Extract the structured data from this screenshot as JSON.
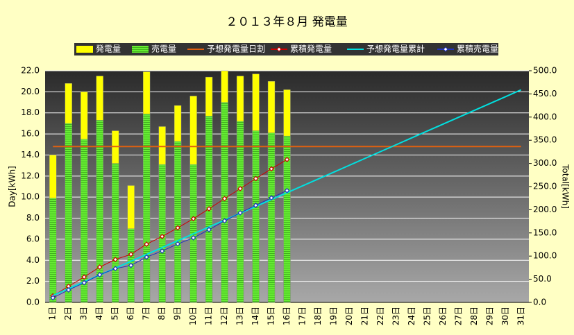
{
  "chart_data": {
    "type": "bar",
    "title": "２０１３年８月 発電量",
    "ylabel": "Day[kWh]",
    "y2label": "Total[kWh]",
    "categories": [
      "1日",
      "2日",
      "3日",
      "4日",
      "5日",
      "6日",
      "7日",
      "8日",
      "9日",
      "10日",
      "11日",
      "12日",
      "13日",
      "14日",
      "15日",
      "16日",
      "17日",
      "18日",
      "19日",
      "20日",
      "21日",
      "22日",
      "23日",
      "24日",
      "25日",
      "26日",
      "27日",
      "28日",
      "29日",
      "30日",
      "31日"
    ],
    "ylim": [
      0,
      22
    ],
    "yticks": [
      {
        "value": 0,
        "label": "0.0"
      },
      {
        "value": 2,
        "label": "2.0"
      },
      {
        "value": 4,
        "label": "4.0"
      },
      {
        "value": 6,
        "label": "6.0"
      },
      {
        "value": 8,
        "label": "8.0"
      },
      {
        "value": 10,
        "label": "10.0"
      },
      {
        "value": 12,
        "label": "12.0"
      },
      {
        "value": 14,
        "label": "14.0"
      },
      {
        "value": 16,
        "label": "16.0"
      },
      {
        "value": 18,
        "label": "18.0"
      },
      {
        "value": 20,
        "label": "20.0"
      },
      {
        "value": 22,
        "label": "22.0"
      }
    ],
    "y2lim": [
      0,
      500
    ],
    "y2ticks": [
      {
        "value": 0,
        "label": "0.0"
      },
      {
        "value": 50,
        "label": "50.0"
      },
      {
        "value": 100,
        "label": "100.0"
      },
      {
        "value": 150,
        "label": "150.0"
      },
      {
        "value": 200,
        "label": "200.0"
      },
      {
        "value": 250,
        "label": "250.0"
      },
      {
        "value": 300,
        "label": "300.0"
      },
      {
        "value": 350,
        "label": "350.0"
      },
      {
        "value": 400,
        "label": "400.0"
      },
      {
        "value": 450,
        "label": "450.0"
      },
      {
        "value": 500,
        "label": "500.0"
      }
    ],
    "grid": true,
    "series": [
      {
        "name": "発電量",
        "type": "bar",
        "color": "#ffff00",
        "values": [
          14.0,
          20.8,
          20.0,
          21.5,
          16.3,
          11.1,
          21.9,
          16.7,
          18.7,
          19.6,
          21.4,
          22.0,
          21.5,
          21.7,
          21.0,
          20.2,
          null,
          null,
          null,
          null,
          null,
          null,
          null,
          null,
          null,
          null,
          null,
          null,
          null,
          null,
          null
        ]
      },
      {
        "name": "売電量",
        "type": "bar",
        "color": "#66ee33",
        "values": [
          9.9,
          17.0,
          15.5,
          17.3,
          13.2,
          7.0,
          17.9,
          13.1,
          15.3,
          13.1,
          17.7,
          19.0,
          17.2,
          16.3,
          16.1,
          15.8,
          null,
          null,
          null,
          null,
          null,
          null,
          null,
          null,
          null,
          null,
          null,
          null,
          null,
          null,
          null
        ]
      },
      {
        "name": "予想発電量日割",
        "type": "line",
        "color": "#e06010",
        "values": [
          14.8,
          14.8,
          14.8,
          14.8,
          14.8,
          14.8,
          14.8,
          14.8,
          14.8,
          14.8,
          14.8,
          14.8,
          14.8,
          14.8,
          14.8,
          14.8,
          14.8,
          14.8,
          14.8,
          14.8,
          14.8,
          14.8,
          14.8,
          14.8,
          14.8,
          14.8,
          14.8,
          14.8,
          14.8,
          14.8,
          14.8
        ]
      },
      {
        "name": "累積発電量",
        "type": "line",
        "marker": true,
        "axis": "y2",
        "color": "#cc0000",
        "values": [
          14.0,
          34.8,
          54.8,
          76.3,
          92.6,
          103.7,
          125.6,
          142.3,
          161.0,
          180.6,
          202.0,
          224.0,
          245.5,
          267.2,
          288.2,
          308.4,
          null,
          null,
          null,
          null,
          null,
          null,
          null,
          null,
          null,
          null,
          null,
          null,
          null,
          null,
          null
        ]
      },
      {
        "name": "予想発電量累計",
        "type": "line",
        "axis": "y2",
        "color": "#00e0e0",
        "values": [
          14.8,
          29.6,
          44.4,
          59.2,
          74,
          88.8,
          103.6,
          118.4,
          133.2,
          148,
          162.8,
          177.6,
          192.4,
          207.2,
          222,
          236.8,
          251.6,
          266.4,
          281.2,
          296,
          310.8,
          325.6,
          340.4,
          355.2,
          370,
          384.8,
          399.6,
          414.4,
          429.2,
          444,
          458.8
        ]
      },
      {
        "name": "累積売電量",
        "type": "line",
        "marker": true,
        "axis": "y2",
        "color": "#2030c0",
        "values": [
          9.9,
          26.9,
          42.4,
          59.7,
          72.9,
          79.9,
          97.8,
          110.9,
          126.2,
          139.3,
          157.0,
          176.0,
          193.2,
          209.5,
          225.6,
          241.4,
          null,
          null,
          null,
          null,
          null,
          null,
          null,
          null,
          null,
          null,
          null,
          null,
          null,
          null,
          null
        ]
      }
    ]
  }
}
